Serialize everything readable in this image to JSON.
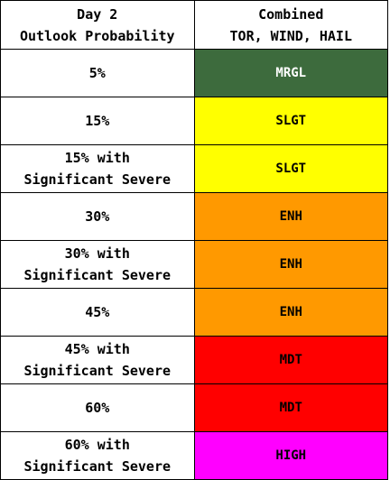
{
  "header": {
    "probability_line1": "Day 2",
    "probability_line2": "Outlook Probability",
    "category_line1": "Combined",
    "category_line2": "TOR, WIND, HAIL"
  },
  "rows": [
    {
      "probability_line1": "5%",
      "probability_line2": "",
      "category": "MRGL",
      "color": "#3d6b3d",
      "text_color": "#ffffff"
    },
    {
      "probability_line1": "15%",
      "probability_line2": "",
      "category": "SLGT",
      "color": "#ffff00",
      "text_color": "#000000"
    },
    {
      "probability_line1": "15% with",
      "probability_line2": "Significant Severe",
      "category": "SLGT",
      "color": "#ffff00",
      "text_color": "#000000"
    },
    {
      "probability_line1": "30%",
      "probability_line2": "",
      "category": "ENH",
      "color": "#ff9900",
      "text_color": "#000000"
    },
    {
      "probability_line1": "30% with",
      "probability_line2": "Significant Severe",
      "category": "ENH",
      "color": "#ff9900",
      "text_color": "#000000"
    },
    {
      "probability_line1": "45%",
      "probability_line2": "",
      "category": "ENH",
      "color": "#ff9900",
      "text_color": "#000000"
    },
    {
      "probability_line1": "45% with",
      "probability_line2": "Significant Severe",
      "category": "MDT",
      "color": "#ff0000",
      "text_color": "#000000"
    },
    {
      "probability_line1": "60%",
      "probability_line2": "",
      "category": "MDT",
      "color": "#ff0000",
      "text_color": "#000000"
    },
    {
      "probability_line1": "60% with",
      "probability_line2": "Significant Severe",
      "category": "HIGH",
      "color": "#ff00ff",
      "text_color": "#000000"
    }
  ]
}
